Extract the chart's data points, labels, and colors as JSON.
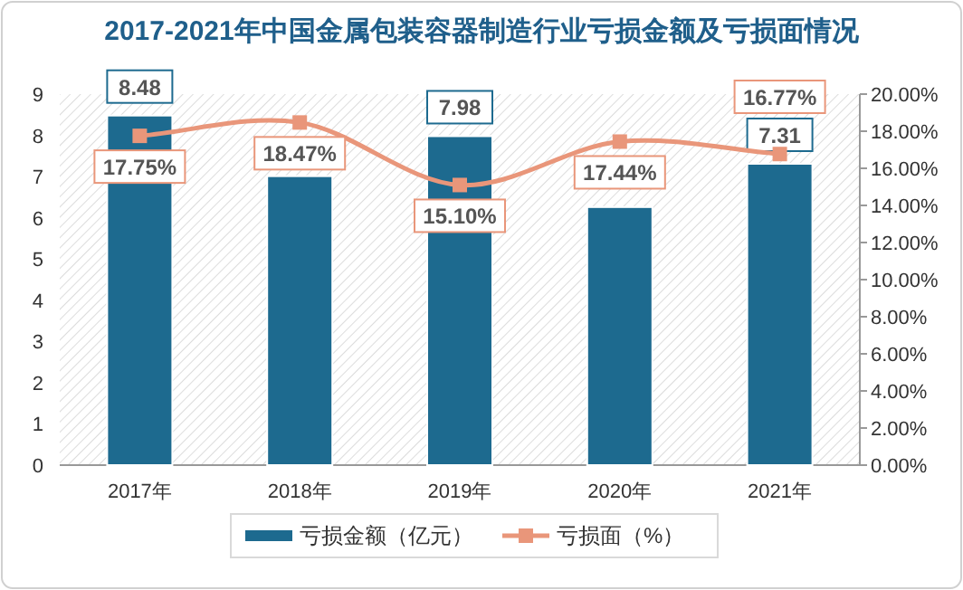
{
  "chart_data": {
    "type": "bar",
    "title": "2017-2021年中国金属包装容器制造行业亏损金额及亏损面情况",
    "categories": [
      "2017年",
      "2018年",
      "2019年",
      "2020年",
      "2021年"
    ],
    "series": [
      {
        "name": "亏损金额（亿元）",
        "color": "#1d6a8f",
        "values": [
          8.48,
          7.01,
          7.98,
          6.26,
          7.31
        ],
        "value_labels": [
          "8.48",
          null,
          "7.98",
          null,
          "7.31"
        ]
      },
      {
        "name": "亏损面（%）",
        "type": "line",
        "axis": "y2",
        "color": "#e9967a",
        "marker": "square",
        "values": [
          17.75,
          18.47,
          15.1,
          17.44,
          16.77
        ],
        "value_labels": [
          "17.75%",
          "18.47%",
          "15.10%",
          "17.44%",
          "16.77%"
        ]
      }
    ],
    "ylim": [
      0,
      9
    ],
    "yticks": [
      0,
      1,
      2,
      3,
      4,
      5,
      6,
      7,
      8,
      9
    ],
    "y2lim": [
      0,
      20
    ],
    "y2ticks": [
      {
        "value": 0,
        "label": "0.00%"
      },
      {
        "value": 2,
        "label": "2.00%"
      },
      {
        "value": 4,
        "label": "4.00%"
      },
      {
        "value": 6,
        "label": "6.00%"
      },
      {
        "value": 8,
        "label": "8.00%"
      },
      {
        "value": 10,
        "label": "10.00%"
      },
      {
        "value": 12,
        "label": "12.00%"
      },
      {
        "value": 14,
        "label": "14.00%"
      },
      {
        "value": 16,
        "label": "16.00%"
      },
      {
        "value": 18,
        "label": "18.00%"
      },
      {
        "value": 20,
        "label": "20.00%"
      }
    ],
    "grid": false,
    "legend": "bottom"
  }
}
